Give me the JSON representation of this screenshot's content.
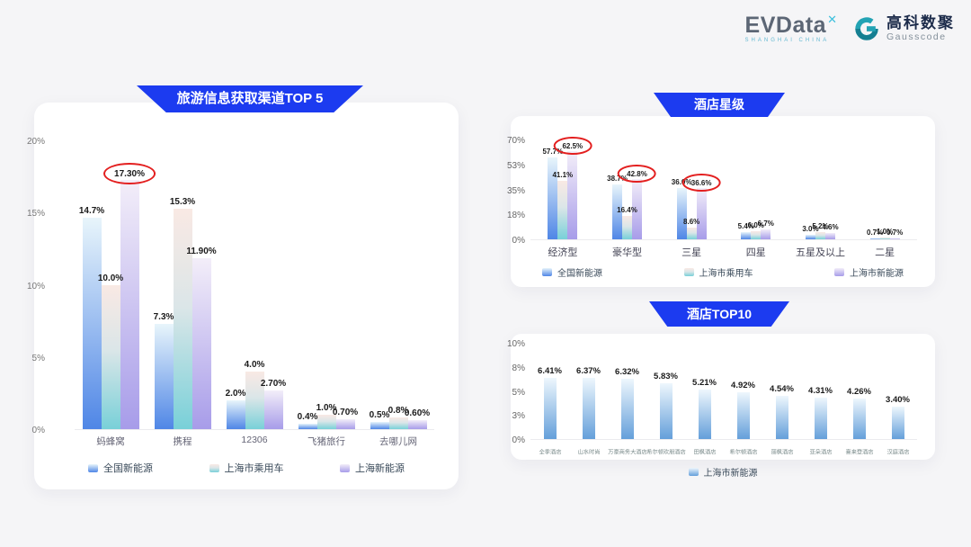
{
  "logo": {
    "wordmark": "EVData",
    "wordmark_sup": "✕",
    "wordmark_sub": "SHANGHAI CHINA",
    "brand_cn": "高科数聚",
    "brand_en": "Gausscode"
  },
  "colors": {
    "page_bg": "#f5f5f7",
    "ribbon_blue": "#1c3bf0",
    "circle_red": "#e31f1f",
    "series": [
      {
        "key": "blue",
        "top": "#e8f5fb",
        "bottom": "#4f86e6",
        "legend": "#7aa7ea"
      },
      {
        "key": "teal",
        "top": "#f9e9e4",
        "mid": "#dbe6e8",
        "bottom": "#78d0d8",
        "legend": "#8fd9de"
      },
      {
        "key": "purple",
        "top": "#f3eef9",
        "bottom": "#a79ce9",
        "legend": "#b0a7ee"
      },
      {
        "key": "solo-blue",
        "top": "#eef7fd",
        "bottom": "#649fda",
        "legend": "#7fb0e6"
      }
    ]
  },
  "chart_data": [
    {
      "id": "travel-top5",
      "type": "bar",
      "title": "旅游信息获取渠道TOP 5",
      "ylim": [
        0,
        20
      ],
      "yticks": [
        "20%",
        "15%",
        "10%",
        "5%",
        "0%"
      ],
      "grid": false,
      "legend_position": "bottom",
      "categories": [
        "蚂蜂窝",
        "携程",
        "12306",
        "飞猪旅行",
        "去哪儿网"
      ],
      "series": [
        {
          "name": "全国新能源",
          "color": 0,
          "values": [
            14.7,
            7.3,
            2.0,
            0.4,
            0.5
          ],
          "labels": [
            "14.7%",
            "7.3%",
            "2.0%",
            "0.4%",
            "0.5%"
          ]
        },
        {
          "name": "上海市乘用车",
          "color": 1,
          "values": [
            10.0,
            15.3,
            4.0,
            1.0,
            0.8
          ],
          "labels": [
            "10.0%",
            "15.3%",
            "4.0%",
            "1.0%",
            "0.8%"
          ]
        },
        {
          "name": "上海新能源",
          "color": 2,
          "values": [
            17.3,
            11.9,
            2.7,
            0.7,
            0.6
          ],
          "labels": [
            "17.30%",
            "11.90%",
            "2.70%",
            "0.70%",
            "0.60%"
          ]
        }
      ],
      "circled": [
        [
          2,
          0
        ]
      ]
    },
    {
      "id": "hotel-star",
      "type": "bar",
      "title": "酒店星级",
      "ylim": [
        0,
        70
      ],
      "yticks": [
        "70%",
        "53%",
        "35%",
        "18%",
        "0%"
      ],
      "grid": false,
      "legend_position": "bottom",
      "categories": [
        "经济型",
        "豪华型",
        "三星",
        "四星",
        "五星及以上",
        "二星"
      ],
      "series": [
        {
          "name": "全国新能源",
          "color": 0,
          "values": [
            57.7,
            38.7,
            36.0,
            5.4,
            3.0,
            0.7
          ],
          "labels": [
            "57.7%",
            "38.7%",
            "36.0%",
            "5.4%",
            "3.0%",
            "0.7%"
          ]
        },
        {
          "name": "上海市乘用车",
          "color": 1,
          "values": [
            41.1,
            16.4,
            8.6,
            6.0,
            5.2,
            1.0
          ],
          "labels": [
            "41.1%",
            "16.4%",
            "8.6%",
            "6.0%",
            "5.2%",
            "1.0%"
          ]
        },
        {
          "name": "上海市新能源",
          "color": 2,
          "values": [
            62.5,
            42.8,
            36.6,
            6.7,
            4.6,
            0.7
          ],
          "labels": [
            "62.5%",
            "42.8%",
            "36.6%",
            "6.7%",
            "4.6%",
            "0.7%"
          ]
        }
      ],
      "circled": [
        [
          2,
          0
        ],
        [
          2,
          1
        ],
        [
          2,
          2
        ]
      ]
    },
    {
      "id": "hotel-top10",
      "type": "bar",
      "title": "酒店TOP10",
      "ylim": [
        0,
        10
      ],
      "yticks": [
        "10%",
        "8%",
        "5%",
        "3%",
        "0%"
      ],
      "grid": false,
      "legend_position": "bottom",
      "categories": [
        "全季酒店",
        "山水时尚",
        "万豪商务大酒店",
        "希尔顿欢朋酒店",
        "田枫酒店",
        "希尔顿酒店",
        "丽枫酒店",
        "亚朵酒店",
        "喜来登酒店",
        "汉庭酒店"
      ],
      "series": [
        {
          "name": "上海市新能源",
          "color": 3,
          "values": [
            6.41,
            6.37,
            6.32,
            5.83,
            5.21,
            4.92,
            4.54,
            4.31,
            4.26,
            3.4
          ],
          "labels": [
            "6.41%",
            "6.37%",
            "6.32%",
            "5.83%",
            "5.21%",
            "4.92%",
            "4.54%",
            "4.31%",
            "4.26%",
            "3.40%"
          ]
        }
      ],
      "circled": []
    }
  ]
}
